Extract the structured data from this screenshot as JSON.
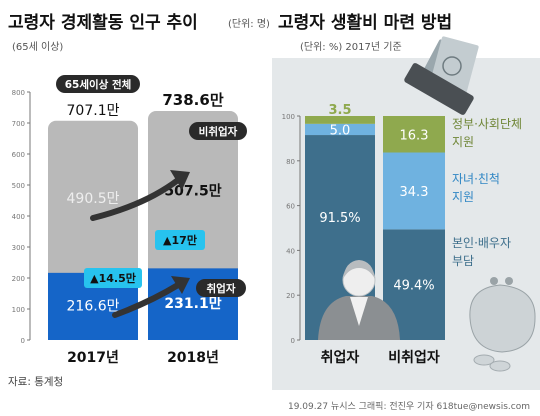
{
  "colors": {
    "gray_bar": "#b9b9b9",
    "gray_text": "#eeeeee",
    "blue_bar": "#1565c8",
    "dark_label": "#2a2a2a",
    "cyan": "#27c3ee",
    "right_col_top": "#8fa94e",
    "right_col_mid": "#6fb2e0",
    "right_col_bot": "#3e6f8c",
    "right_panel_bg": "#e4e8ea",
    "source_text": "#444444"
  },
  "left_chart": {
    "title": "고령자 경제활동 인구 추이",
    "unit": "(단위: 명)",
    "subtitle": "(65세 이상)",
    "ytick_labels": [
      "0",
      "100",
      "200",
      "300",
      "400",
      "500",
      "600",
      "700",
      "800"
    ],
    "total_badge": "65세이상 전체",
    "total_labels": [
      "707.1만",
      "738.6만"
    ],
    "nonworker_badge": "비취업자",
    "worker_badge": "취업자",
    "increase_labels": [
      "▲14.5만",
      "▲17만"
    ],
    "year_labels": [
      "2017년",
      "2018년"
    ],
    "source": "자료: 통계청"
  },
  "right_chart": {
    "title": "고령자 생활비 마련 방법",
    "unit": "(단위: %) 2017년 기준",
    "ytick_labels": [
      "0",
      "20",
      "40",
      "60",
      "80",
      "100"
    ],
    "col_labels": [
      "취업자",
      "비취업자"
    ],
    "value_labels": [
      [
        "91.5%",
        "5.0",
        "3.5"
      ],
      [
        "49.4%",
        "34.3",
        "16.3"
      ]
    ],
    "legend": [
      {
        "name": "본인·배우자 부담",
        "lines": [
          "본인·배우자",
          "부담"
        ]
      },
      {
        "name": "자녀·친척 지원",
        "lines": [
          "자녀·친척",
          "지원"
        ]
      },
      {
        "name": "정부·사회단체 지원",
        "lines": [
          "정부·사회단체",
          "지원"
        ]
      }
    ]
  },
  "footer": {
    "credit": "19.09.27 뉴시스 그래픽: 전진우 기자 618tue@newsis.com"
  },
  "chart_data": [
    {
      "type": "bar",
      "title": "고령자 경제활동 인구 추이",
      "subtitle": "(65세 이상)",
      "ylabel": "(단위: 명)",
      "categories": [
        "2017년",
        "2018년"
      ],
      "ylim": [
        0,
        800
      ],
      "stacked": true,
      "series": [
        {
          "name": "취업자",
          "values": [
            216.6,
            231.1
          ],
          "labels": [
            "216.6만",
            "231.1만"
          ]
        },
        {
          "name": "비취업자",
          "values": [
            490.5,
            507.5
          ],
          "labels": [
            "490.5만",
            "507.5만"
          ]
        }
      ],
      "totals": [
        707.1,
        738.6
      ],
      "annotations": [
        "▲14.5만",
        "▲17만"
      ],
      "grid": false
    },
    {
      "type": "bar",
      "title": "고령자 생활비 마련 방법",
      "ylabel": "(단위: %) 2017년 기준",
      "categories": [
        "취업자",
        "비취업자"
      ],
      "ylim": [
        0,
        100
      ],
      "stacked": true,
      "series": [
        {
          "name": "본인·배우자 부담",
          "values": [
            91.5,
            49.4
          ]
        },
        {
          "name": "자녀·친척 지원",
          "values": [
            5.0,
            34.3
          ]
        },
        {
          "name": "정부·사회단체 지원",
          "values": [
            3.5,
            16.3
          ]
        }
      ],
      "legend_position": "right",
      "grid": false
    }
  ]
}
